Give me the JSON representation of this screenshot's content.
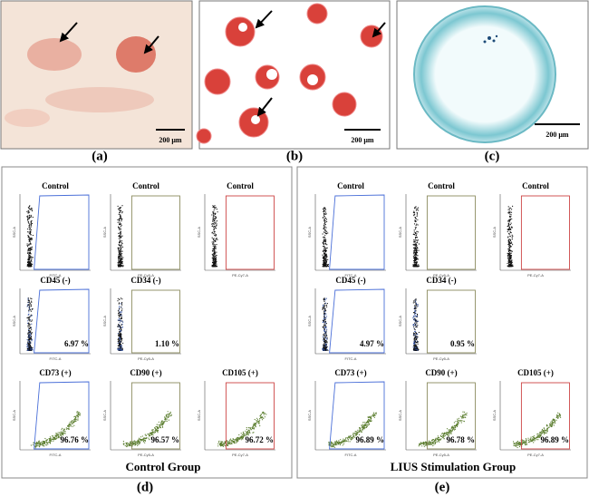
{
  "micrographs": [
    {
      "label": "(a)",
      "scale": "200 μm"
    },
    {
      "label": "(b)",
      "scale": "200 μm"
    },
    {
      "label": "(c)",
      "scale": "200 μm"
    }
  ],
  "groups": [
    {
      "label": "(d)",
      "caption": "Control Group",
      "plots": [
        {
          "title": "Control",
          "x_label": "FITC-A",
          "y_label": "SSC-A"
        },
        {
          "title": "Control",
          "x_label": "PE-Cy5-A",
          "y_label": "SSC-A"
        },
        {
          "title": "Control",
          "x_label": "PE-Cy7-A",
          "y_label": "SSC-A"
        },
        {
          "title": "CD45 (-)",
          "x_label": "FITC-A",
          "y_label": "SSC-A",
          "percent": "6.97 %"
        },
        {
          "title": "CD34 (-)",
          "x_label": "PE-Cy5-A",
          "y_label": "SSC-A",
          "percent": "1.10 %"
        },
        {
          "title": "CD73 (+)",
          "x_label": "FITC-A",
          "y_label": "SSC-A",
          "percent": "96.76 %"
        },
        {
          "title": "CD90 (+)",
          "x_label": "PE-Cy5-A",
          "y_label": "SSC-A",
          "percent": "96.57 %"
        },
        {
          "title": "CD105 (+)",
          "x_label": "PE-Cy7-A",
          "y_label": "SSC-A",
          "percent": "96.72 %"
        }
      ]
    },
    {
      "label": "(e)",
      "caption": "LIUS Stimulation Group",
      "plots": [
        {
          "title": "Control",
          "x_label": "FITC-A",
          "y_label": "SSC-A"
        },
        {
          "title": "Control",
          "x_label": "PE-Cy5-A",
          "y_label": "SSC-A"
        },
        {
          "title": "Control",
          "x_label": "PE-Cy7-A",
          "y_label": "SSC-A"
        },
        {
          "title": "CD45 (-)",
          "x_label": "FITC-A",
          "y_label": "SSC-A",
          "percent": "4.97 %"
        },
        {
          "title": "CD34 (-)",
          "x_label": "PE-Cy5-A",
          "y_label": "SSC-A",
          "percent": "0.95 %"
        },
        {
          "title": "CD73 (+)",
          "x_label": "FITC-A",
          "y_label": "SSC-A",
          "percent": "96.89 %"
        },
        {
          "title": "CD90 (+)",
          "x_label": "PE-Cy5-A",
          "y_label": "SSC-A",
          "percent": "96.78 %"
        },
        {
          "title": "CD105 (+)",
          "x_label": "PE-Cy7-A",
          "y_label": "SSC-A",
          "percent": "96.89 %"
        }
      ]
    }
  ]
}
